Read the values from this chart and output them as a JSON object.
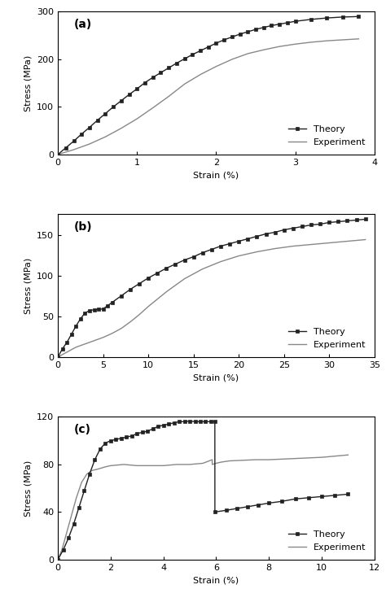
{
  "panel_a": {
    "label": "(a)",
    "xlim": [
      0,
      4
    ],
    "ylim": [
      0,
      300
    ],
    "xticks": [
      0,
      1,
      2,
      3,
      4
    ],
    "yticks": [
      0,
      100,
      200,
      300
    ],
    "xlabel": "Strain (%)",
    "ylabel": "Stress (MPa)",
    "theory_x": [
      0,
      0.1,
      0.2,
      0.3,
      0.4,
      0.5,
      0.6,
      0.7,
      0.8,
      0.9,
      1.0,
      1.1,
      1.2,
      1.3,
      1.4,
      1.5,
      1.6,
      1.7,
      1.8,
      1.9,
      2.0,
      2.1,
      2.2,
      2.3,
      2.4,
      2.5,
      2.6,
      2.7,
      2.8,
      2.9,
      3.0,
      3.2,
      3.4,
      3.6,
      3.8
    ],
    "theory_y": [
      0,
      14,
      28,
      43,
      57,
      72,
      86,
      100,
      113,
      126,
      138,
      151,
      162,
      172,
      182,
      192,
      201,
      210,
      218,
      226,
      234,
      241,
      247,
      253,
      258,
      263,
      267,
      271,
      274,
      277,
      280,
      284,
      287,
      289,
      290
    ],
    "exp_x": [
      0,
      0.2,
      0.4,
      0.6,
      0.8,
      1.0,
      1.2,
      1.4,
      1.6,
      1.8,
      2.0,
      2.2,
      2.4,
      2.6,
      2.8,
      3.0,
      3.2,
      3.4,
      3.6,
      3.8
    ],
    "exp_y": [
      0,
      10,
      22,
      37,
      55,
      75,
      98,
      122,
      148,
      168,
      185,
      200,
      212,
      220,
      227,
      232,
      236,
      239,
      241,
      243
    ],
    "legend_loc": "lower right"
  },
  "panel_b": {
    "label": "(b)",
    "xlim": [
      0,
      35
    ],
    "ylim": [
      0,
      175
    ],
    "xticks": [
      0,
      5,
      10,
      15,
      20,
      25,
      30,
      35
    ],
    "yticks": [
      0,
      50,
      100,
      150
    ],
    "xlabel": "Strain (%)",
    "ylabel": "Stress (MPa)",
    "theory_x": [
      0,
      0.5,
      1.0,
      1.5,
      2.0,
      2.5,
      3.0,
      3.5,
      4.0,
      4.5,
      5.0,
      5.5,
      6.0,
      7.0,
      8.0,
      9.0,
      10.0,
      11.0,
      12.0,
      13.0,
      14.0,
      15.0,
      16.0,
      17.0,
      18.0,
      19.0,
      20.0,
      21.0,
      22.0,
      23.0,
      24.0,
      25.0,
      26.0,
      27.0,
      28.0,
      29.0,
      30.0,
      31.0,
      32.0,
      33.0,
      34.0
    ],
    "theory_y": [
      0,
      10,
      18,
      28,
      38,
      47,
      54,
      57,
      58,
      58.5,
      59,
      63,
      67,
      75,
      83,
      90,
      97,
      103,
      109,
      114,
      119,
      123,
      128,
      132,
      136,
      139,
      142,
      145,
      148,
      151,
      153,
      156,
      158,
      160,
      162,
      163,
      165,
      166,
      167,
      168,
      169
    ],
    "exp_x": [
      0,
      0.5,
      1.0,
      1.5,
      2.0,
      3.0,
      4.0,
      5.0,
      6.0,
      7.0,
      8.0,
      9.0,
      10.0,
      12.0,
      14.0,
      16.0,
      18.0,
      20.0,
      22.0,
      24.0,
      26.0,
      28.0,
      30.0,
      32.0,
      34.0
    ],
    "exp_y": [
      0,
      3,
      6,
      9,
      12,
      16,
      20,
      24,
      29,
      35,
      43,
      52,
      62,
      80,
      96,
      108,
      117,
      124,
      129,
      133,
      136,
      138,
      140,
      142,
      144
    ],
    "legend_loc": "lower right"
  },
  "panel_c": {
    "label": "(c)",
    "xlim": [
      0,
      12
    ],
    "ylim": [
      0,
      120
    ],
    "xticks": [
      0,
      2,
      4,
      6,
      8,
      10,
      12
    ],
    "yticks": [
      0,
      40,
      80,
      120
    ],
    "xlabel": "Strain (%)",
    "ylabel": "Stress (MPa)",
    "theory_x": [
      0,
      0.2,
      0.4,
      0.6,
      0.8,
      1.0,
      1.2,
      1.4,
      1.6,
      1.8,
      2.0,
      2.2,
      2.4,
      2.6,
      2.8,
      3.0,
      3.2,
      3.4,
      3.6,
      3.8,
      4.0,
      4.2,
      4.4,
      4.6,
      4.8,
      5.0,
      5.2,
      5.4,
      5.6,
      5.8,
      5.95,
      5.952,
      6.4,
      6.8,
      7.2,
      7.6,
      8.0,
      8.5,
      9.0,
      9.5,
      10.0,
      10.5,
      11.0
    ],
    "theory_y": [
      0,
      8,
      18,
      30,
      44,
      58,
      72,
      84,
      93,
      98,
      100,
      101,
      102,
      103,
      104,
      106,
      107,
      108,
      110,
      112,
      113,
      114,
      115,
      116,
      116,
      116.5,
      116,
      116,
      116,
      116,
      116,
      40,
      41.5,
      43,
      44.5,
      46,
      47.5,
      49,
      51,
      52,
      53,
      54,
      55
    ],
    "exp_x": [
      0,
      0.15,
      0.3,
      0.5,
      0.7,
      0.9,
      1.1,
      1.3,
      1.5,
      1.8,
      2.0,
      2.5,
      3.0,
      3.5,
      4.0,
      4.5,
      5.0,
      5.5,
      5.85,
      5.851,
      6.0,
      6.2,
      6.5,
      7.0,
      7.5,
      8.0,
      8.5,
      9.0,
      9.5,
      10.0,
      10.5,
      11.0
    ],
    "exp_y": [
      0,
      8,
      20,
      36,
      52,
      65,
      72,
      75,
      76,
      78,
      79,
      80,
      79,
      79,
      79,
      80,
      80,
      81,
      84,
      80,
      81,
      82,
      83,
      83.5,
      84,
      84,
      84.5,
      85,
      85.5,
      86,
      87,
      88
    ],
    "legend_loc": "lower right"
  },
  "theory_color": "#222222",
  "exp_color": "#888888",
  "marker": "s",
  "markersize": 2.5,
  "linewidth_theory": 1.0,
  "linewidth_exp": 1.0,
  "fontsize_label": 8,
  "fontsize_tick": 8,
  "fontsize_panel": 10,
  "legend_fontsize": 8
}
